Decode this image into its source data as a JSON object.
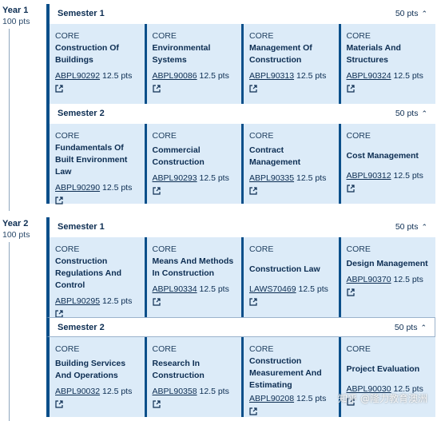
{
  "years": [
    {
      "label": "Year 1",
      "points": "100 pts",
      "semesters": [
        {
          "title": "Semester 1",
          "points": "50 pts",
          "subjects": [
            {
              "type": "CORE",
              "title": "Construction Of Buildings",
              "code": "ABPL90292",
              "credit": "12.5 pts"
            },
            {
              "type": "CORE",
              "title": "Environmental Systems",
              "code": "ABPL90086",
              "credit": "12.5 pts"
            },
            {
              "type": "CORE",
              "title": "Management Of Construction",
              "code": "ABPL90313",
              "credit": "12.5 pts"
            },
            {
              "type": "CORE",
              "title": "Materials And Structures",
              "code": "ABPL90324",
              "credit": "12.5 pts"
            }
          ]
        },
        {
          "title": "Semester 2",
          "points": "50 pts",
          "subjects": [
            {
              "type": "CORE",
              "title": "Fundamentals Of Built Environment Law",
              "code": "ABPL90290",
              "credit": "12.5 pts"
            },
            {
              "type": "CORE",
              "title": "Commercial Construction",
              "code": "ABPL90293",
              "credit": "12.5 pts"
            },
            {
              "type": "CORE",
              "title": "Contract Management",
              "code": "ABPL90335",
              "credit": "12.5 pts"
            },
            {
              "type": "CORE",
              "title": "Cost Management",
              "code": "ABPL90312",
              "credit": "12.5 pts"
            }
          ]
        }
      ]
    },
    {
      "label": "Year 2",
      "points": "100 pts",
      "semesters": [
        {
          "title": "Semester 1",
          "points": "50 pts",
          "subjects": [
            {
              "type": "CORE",
              "title": "Construction Regulations And Control",
              "code": "ABPL90295",
              "credit": "12.5 pts"
            },
            {
              "type": "CORE",
              "title": "Means And Methods In Construction",
              "code": "ABPL90334",
              "credit": "12.5 pts"
            },
            {
              "type": "CORE",
              "title": "Construction Law",
              "code": "LAWS70469",
              "credit": "12.5 pts"
            },
            {
              "type": "CORE",
              "title": "Design Management",
              "code": "ABPL90370",
              "credit": "12.5 pts"
            }
          ]
        },
        {
          "title": "Semester 2",
          "points": "50 pts",
          "subjects": [
            {
              "type": "CORE",
              "title": "Building Services And Operations",
              "code": "ABPL90032",
              "credit": "12.5 pts"
            },
            {
              "type": "CORE",
              "title": "Research In Construction",
              "code": "ABPL90358",
              "credit": "12.5 pts"
            },
            {
              "type": "CORE",
              "title": "Construction Measurement And Estimating",
              "code": "ABPL90208",
              "credit": "12.5 pts"
            },
            {
              "type": "CORE",
              "title": "Project Evaluation",
              "code": "ABPL90030",
              "credit": "12.5 pts"
            }
          ]
        }
      ]
    }
  ],
  "watermark": "知乎 @隆力教育澳洲",
  "colors": {
    "accent": "#0b4f8a",
    "card_bg": "#dcebf8",
    "text": "#0c2d52"
  },
  "icons": {
    "chevron": "chevron-up-icon",
    "external": "external-link-icon"
  }
}
